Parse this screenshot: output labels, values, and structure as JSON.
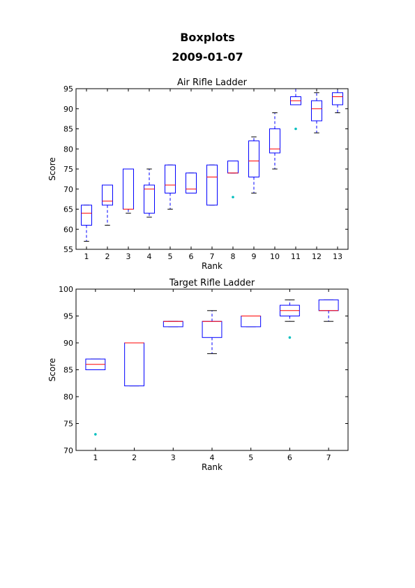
{
  "page": {
    "title": "Boxplots",
    "subtitle": "2009-01-07"
  },
  "colors": {
    "box": "#0000ff",
    "median": "#ff0000",
    "whisker": "#0000ff",
    "cap": "#000000",
    "flier": "#00bfbf",
    "axis": "#000000"
  },
  "chart_data": [
    {
      "type": "box",
      "title": "Air Rifle Ladder",
      "xlabel": "Rank",
      "ylabel": "Score",
      "ylim": [
        55,
        95
      ],
      "yticks": [
        55,
        60,
        65,
        70,
        75,
        80,
        85,
        90,
        95
      ],
      "grid": false,
      "categories": [
        "1",
        "2",
        "3",
        "4",
        "5",
        "6",
        "7",
        "8",
        "9",
        "10",
        "11",
        "12",
        "13"
      ],
      "boxes": [
        {
          "whislo": 57,
          "q1": 61,
          "med": 64,
          "q3": 66,
          "whishi": 66,
          "fliers": []
        },
        {
          "whislo": 61,
          "q1": 66,
          "med": 67,
          "q3": 71,
          "whishi": 71,
          "fliers": []
        },
        {
          "whislo": 64,
          "q1": 65,
          "med": 65,
          "q3": 75,
          "whishi": 75,
          "fliers": []
        },
        {
          "whislo": 63,
          "q1": 64,
          "med": 70,
          "q3": 71,
          "whishi": 75,
          "fliers": []
        },
        {
          "whislo": 65,
          "q1": 69,
          "med": 71,
          "q3": 76,
          "whishi": 76,
          "fliers": []
        },
        {
          "whislo": 69,
          "q1": 69,
          "med": 70,
          "q3": 74,
          "whishi": 74,
          "fliers": []
        },
        {
          "whislo": 66,
          "q1": 66,
          "med": 73,
          "q3": 76,
          "whishi": 76,
          "fliers": []
        },
        {
          "whislo": 74,
          "q1": 74,
          "med": 74,
          "q3": 77,
          "whishi": 77,
          "fliers": [
            68
          ]
        },
        {
          "whislo": 69,
          "q1": 73,
          "med": 77,
          "q3": 82,
          "whishi": 83,
          "fliers": []
        },
        {
          "whislo": 75,
          "q1": 79,
          "med": 80,
          "q3": 85,
          "whishi": 89,
          "fliers": []
        },
        {
          "whislo": 91,
          "q1": 91,
          "med": 92,
          "q3": 93,
          "whishi": 95,
          "fliers": [
            85
          ]
        },
        {
          "whislo": 84,
          "q1": 87,
          "med": 90,
          "q3": 92,
          "whishi": 94,
          "fliers": []
        },
        {
          "whislo": 89,
          "q1": 91,
          "med": 93,
          "q3": 94,
          "whishi": 95,
          "fliers": []
        }
      ]
    },
    {
      "type": "box",
      "title": "Target Rifle Ladder",
      "xlabel": "Rank",
      "ylabel": "Score",
      "ylim": [
        70,
        100
      ],
      "yticks": [
        70,
        75,
        80,
        85,
        90,
        95,
        100
      ],
      "grid": false,
      "categories": [
        "1",
        "2",
        "3",
        "4",
        "5",
        "6",
        "7"
      ],
      "boxes": [
        {
          "whislo": 85,
          "q1": 85,
          "med": 86,
          "q3": 87,
          "whishi": 87,
          "fliers": [
            73
          ]
        },
        {
          "whislo": 82,
          "q1": 82,
          "med": 90,
          "q3": 90,
          "whishi": 90,
          "fliers": []
        },
        {
          "whislo": 93,
          "q1": 93,
          "med": 94,
          "q3": 94,
          "whishi": 94,
          "fliers": []
        },
        {
          "whislo": 88,
          "q1": 91,
          "med": 94,
          "q3": 94,
          "whishi": 96,
          "fliers": []
        },
        {
          "whislo": 93,
          "q1": 93,
          "med": 95,
          "q3": 95,
          "whishi": 95,
          "fliers": []
        },
        {
          "whislo": 94,
          "q1": 95,
          "med": 96,
          "q3": 97,
          "whishi": 98,
          "fliers": [
            91
          ]
        },
        {
          "whislo": 94,
          "q1": 96,
          "med": 96,
          "q3": 98,
          "whishi": 98,
          "fliers": []
        }
      ]
    }
  ]
}
